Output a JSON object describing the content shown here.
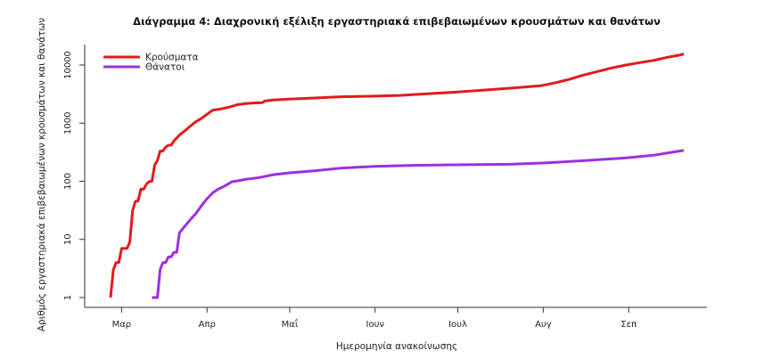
{
  "chart_data": {
    "type": "line",
    "title": "Διάγραμμα 4: Διαχρονική εξέλιξη εργαστηριακά επιβεβαιωμένων κρουσμάτων και θανάτων",
    "xlabel": "Ημερομηνία ανακοίνωσης",
    "ylabel": "Αριθμός εργαστηριακά επιβεβαιωμένων κρουσμάτων και θανάτων",
    "y_scale": "log",
    "ylim": [
      1,
      10000
    ],
    "xlim": [
      "2020-02-26",
      "2020-09-27"
    ],
    "x_ticks": [
      {
        "date": "2020-03-01",
        "label": "Μαρ"
      },
      {
        "date": "2020-04-01",
        "label": "Απρ"
      },
      {
        "date": "2020-05-01",
        "label": "Μαΐ"
      },
      {
        "date": "2020-06-01",
        "label": "Ιουν"
      },
      {
        "date": "2020-07-01",
        "label": "Ιουλ"
      },
      {
        "date": "2020-08-01",
        "label": "Αυγ"
      },
      {
        "date": "2020-09-01",
        "label": "Σεπ"
      }
    ],
    "y_ticks": [
      {
        "value": 1,
        "label": "1"
      },
      {
        "value": 10,
        "label": "10"
      },
      {
        "value": 100,
        "label": "100"
      },
      {
        "value": 1000,
        "label": "1000"
      },
      {
        "value": 10000,
        "label": "10000"
      }
    ],
    "grid": false,
    "legend_position": "top-left",
    "series": [
      {
        "name": "Κρούσματα",
        "color": "#e31a1c",
        "points": [
          [
            "2020-02-26",
            1
          ],
          [
            "2020-02-27",
            3
          ],
          [
            "2020-02-28",
            4
          ],
          [
            "2020-02-29",
            4
          ],
          [
            "2020-03-01",
            7
          ],
          [
            "2020-03-03",
            7
          ],
          [
            "2020-03-04",
            9
          ],
          [
            "2020-03-05",
            31
          ],
          [
            "2020-03-06",
            45
          ],
          [
            "2020-03-07",
            46
          ],
          [
            "2020-03-08",
            73
          ],
          [
            "2020-03-09",
            73
          ],
          [
            "2020-03-10",
            89
          ],
          [
            "2020-03-11",
            99
          ],
          [
            "2020-03-12",
            100
          ],
          [
            "2020-03-13",
            190
          ],
          [
            "2020-03-14",
            228
          ],
          [
            "2020-03-15",
            331
          ],
          [
            "2020-03-16",
            331
          ],
          [
            "2020-03-17",
            387
          ],
          [
            "2020-03-18",
            418
          ],
          [
            "2020-03-19",
            418
          ],
          [
            "2020-03-20",
            495
          ],
          [
            "2020-03-22",
            624
          ],
          [
            "2020-03-24",
            743
          ],
          [
            "2020-03-26",
            892
          ],
          [
            "2020-03-28",
            1061
          ],
          [
            "2020-03-30",
            1212
          ],
          [
            "2020-04-01",
            1415
          ],
          [
            "2020-04-03",
            1673
          ],
          [
            "2020-04-06",
            1755
          ],
          [
            "2020-04-09",
            1884
          ],
          [
            "2020-04-12",
            2081
          ],
          [
            "2020-04-15",
            2170
          ],
          [
            "2020-04-18",
            2224
          ],
          [
            "2020-04-21",
            2245
          ],
          [
            "2020-04-22",
            2401
          ],
          [
            "2020-04-25",
            2506
          ],
          [
            "2020-05-01",
            2591
          ],
          [
            "2020-05-10",
            2710
          ],
          [
            "2020-05-20",
            2850
          ],
          [
            "2020-06-01",
            2918
          ],
          [
            "2020-06-10",
            3000
          ],
          [
            "2020-06-20",
            3200
          ],
          [
            "2020-07-01",
            3432
          ],
          [
            "2020-07-10",
            3700
          ],
          [
            "2020-07-20",
            4000
          ],
          [
            "2020-07-31",
            4400
          ],
          [
            "2020-08-05",
            4900
          ],
          [
            "2020-08-10",
            5600
          ],
          [
            "2020-08-15",
            6600
          ],
          [
            "2020-08-20",
            7600
          ],
          [
            "2020-08-25",
            8700
          ],
          [
            "2020-08-31",
            10000
          ],
          [
            "2020-09-05",
            11000
          ],
          [
            "2020-09-10",
            12000
          ],
          [
            "2020-09-15",
            13600
          ],
          [
            "2020-09-20",
            15000
          ],
          [
            "2020-09-21",
            15500
          ]
        ]
      },
      {
        "name": "Θάνατοι",
        "color": "#9b30e0",
        "points": [
          [
            "2020-03-12",
            1
          ],
          [
            "2020-03-14",
            1
          ],
          [
            "2020-03-15",
            3
          ],
          [
            "2020-03-16",
            4
          ],
          [
            "2020-03-17",
            4
          ],
          [
            "2020-03-18",
            5
          ],
          [
            "2020-03-19",
            5
          ],
          [
            "2020-03-20",
            6
          ],
          [
            "2020-03-21",
            6
          ],
          [
            "2020-03-22",
            13
          ],
          [
            "2020-03-24",
            17
          ],
          [
            "2020-03-26",
            22
          ],
          [
            "2020-03-28",
            28
          ],
          [
            "2020-03-30",
            38
          ],
          [
            "2020-04-01",
            50
          ],
          [
            "2020-04-03",
            63
          ],
          [
            "2020-04-05",
            73
          ],
          [
            "2020-04-07",
            81
          ],
          [
            "2020-04-10",
            98
          ],
          [
            "2020-04-15",
            108
          ],
          [
            "2020-04-20",
            116
          ],
          [
            "2020-04-25",
            130
          ],
          [
            "2020-05-01",
            140
          ],
          [
            "2020-05-10",
            151
          ],
          [
            "2020-05-20",
            169
          ],
          [
            "2020-06-01",
            180
          ],
          [
            "2020-06-15",
            188
          ],
          [
            "2020-07-01",
            192
          ],
          [
            "2020-07-20",
            196
          ],
          [
            "2020-08-01",
            206
          ],
          [
            "2020-08-15",
            225
          ],
          [
            "2020-08-31",
            253
          ],
          [
            "2020-09-10",
            280
          ],
          [
            "2020-09-21",
            340
          ]
        ]
      }
    ]
  }
}
